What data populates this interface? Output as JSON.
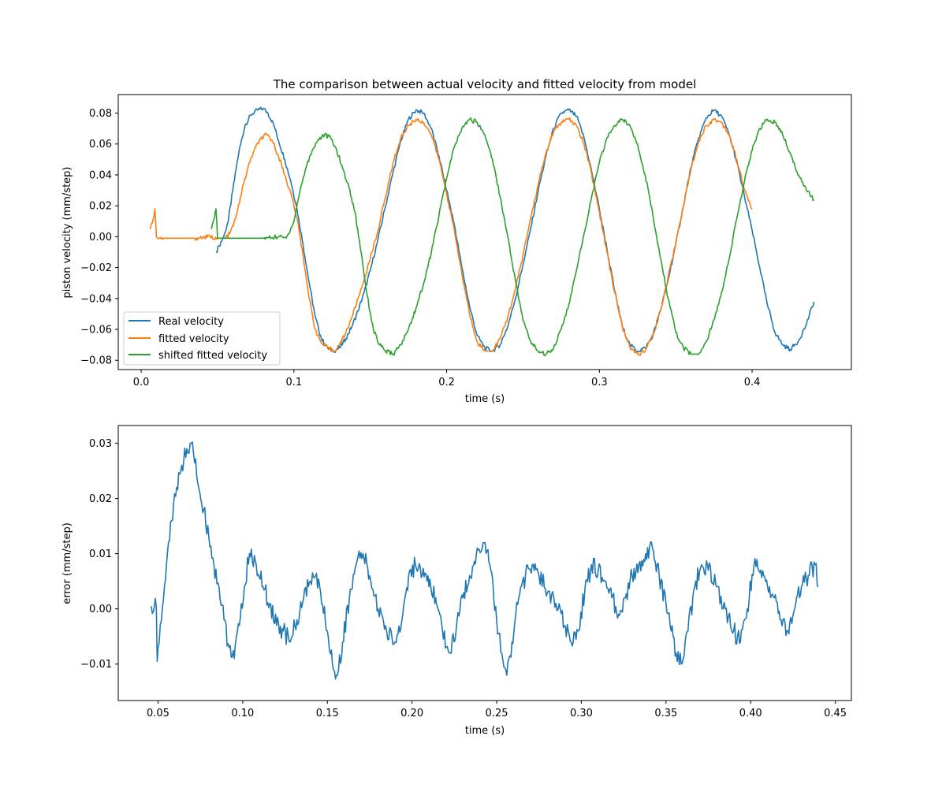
{
  "chart_data": [
    {
      "type": "line",
      "title": "The comparison between actual velocity and fitted velocity from model",
      "xlabel": "time (s)",
      "ylabel": "piston velocity (mm/step)",
      "xlim": [
        -0.015,
        0.465
      ],
      "ylim": [
        -0.086,
        0.092
      ],
      "xticks": [
        0.0,
        0.1,
        0.2,
        0.3,
        0.4
      ],
      "xtick_labels": [
        "0.0",
        "0.1",
        "0.2",
        "0.3",
        "0.4"
      ],
      "yticks": [
        -0.08,
        -0.06,
        -0.04,
        -0.02,
        0.0,
        0.02,
        0.04,
        0.06,
        0.08
      ],
      "ytick_labels": [
        "−0.08",
        "−0.06",
        "−0.04",
        "−0.02",
        "0.00",
        "0.02",
        "0.04",
        "0.06",
        "0.08"
      ],
      "grid": false,
      "legend_position": "lower-left",
      "series": [
        {
          "name": "Real velocity",
          "color": "#1f77b4",
          "x": [
            0.049,
            0.051,
            0.054,
            0.057,
            0.06,
            0.064,
            0.068,
            0.072,
            0.076,
            0.08,
            0.083,
            0.087,
            0.09,
            0.094,
            0.098,
            0.102,
            0.106,
            0.11,
            0.114,
            0.118,
            0.122,
            0.126,
            0.13,
            0.134,
            0.138,
            0.142,
            0.146,
            0.15,
            0.155,
            0.16,
            0.165,
            0.17,
            0.175,
            0.18,
            0.185,
            0.19,
            0.195,
            0.2,
            0.205,
            0.21,
            0.215,
            0.22,
            0.225,
            0.23,
            0.235,
            0.24,
            0.245,
            0.25,
            0.255,
            0.26,
            0.265,
            0.27,
            0.275,
            0.28,
            0.285,
            0.29,
            0.295,
            0.3,
            0.305,
            0.31,
            0.315,
            0.32,
            0.325,
            0.33,
            0.335,
            0.34,
            0.345,
            0.35,
            0.355,
            0.36,
            0.365,
            0.37,
            0.375,
            0.38,
            0.385,
            0.39,
            0.395,
            0.4,
            0.405,
            0.41,
            0.415,
            0.42,
            0.425,
            0.43,
            0.435,
            0.4405
          ],
          "y": [
            -0.01,
            -0.006,
            0.0,
            0.01,
            0.03,
            0.055,
            0.072,
            0.079,
            0.082,
            0.083,
            0.08,
            0.072,
            0.062,
            0.05,
            0.036,
            0.018,
            -0.005,
            -0.03,
            -0.052,
            -0.066,
            -0.072,
            -0.074,
            -0.072,
            -0.066,
            -0.058,
            -0.048,
            -0.036,
            -0.022,
            -0.002,
            0.02,
            0.042,
            0.062,
            0.076,
            0.082,
            0.08,
            0.07,
            0.052,
            0.03,
            0.008,
            -0.02,
            -0.045,
            -0.064,
            -0.072,
            -0.074,
            -0.07,
            -0.058,
            -0.04,
            -0.018,
            0.005,
            0.03,
            0.052,
            0.07,
            0.08,
            0.082,
            0.078,
            0.064,
            0.042,
            0.018,
            -0.008,
            -0.035,
            -0.058,
            -0.07,
            -0.074,
            -0.072,
            -0.064,
            -0.048,
            -0.028,
            -0.005,
            0.02,
            0.045,
            0.064,
            0.077,
            0.082,
            0.078,
            0.066,
            0.048,
            0.026,
            0.004,
            -0.02,
            -0.044,
            -0.062,
            -0.07,
            -0.073,
            -0.068,
            -0.058,
            -0.042
          ]
        },
        {
          "name": "fitted velocity",
          "color": "#ff7f0e",
          "x": [
            0.006,
            0.008,
            0.009,
            0.01,
            0.015,
            0.025,
            0.035,
            0.045,
            0.05,
            0.055,
            0.058,
            0.062,
            0.066,
            0.07,
            0.074,
            0.078,
            0.082,
            0.086,
            0.09,
            0.094,
            0.098,
            0.102,
            0.106,
            0.11,
            0.114,
            0.118,
            0.122,
            0.126,
            0.13,
            0.134,
            0.138,
            0.142,
            0.146,
            0.15,
            0.155,
            0.16,
            0.165,
            0.17,
            0.175,
            0.18,
            0.185,
            0.19,
            0.195,
            0.2,
            0.205,
            0.21,
            0.215,
            0.22,
            0.225,
            0.23,
            0.235,
            0.24,
            0.245,
            0.25,
            0.255,
            0.26,
            0.265,
            0.27,
            0.275,
            0.28,
            0.285,
            0.29,
            0.295,
            0.3,
            0.305,
            0.31,
            0.315,
            0.32,
            0.325,
            0.33,
            0.335,
            0.34,
            0.345,
            0.35,
            0.355,
            0.36,
            0.365,
            0.37,
            0.375,
            0.38,
            0.385,
            0.39,
            0.395,
            0.4
          ],
          "y": [
            0.005,
            0.012,
            0.018,
            0.0,
            -0.001,
            -0.001,
            -0.001,
            0.0,
            -0.001,
            -0.001,
            0.002,
            0.012,
            0.03,
            0.045,
            0.056,
            0.063,
            0.066,
            0.062,
            0.052,
            0.04,
            0.028,
            0.012,
            -0.012,
            -0.04,
            -0.06,
            -0.069,
            -0.072,
            -0.074,
            -0.07,
            -0.062,
            -0.052,
            -0.04,
            -0.028,
            -0.014,
            0.004,
            0.026,
            0.048,
            0.064,
            0.072,
            0.076,
            0.074,
            0.066,
            0.05,
            0.028,
            0.004,
            -0.024,
            -0.05,
            -0.068,
            -0.074,
            -0.074,
            -0.066,
            -0.052,
            -0.034,
            -0.012,
            0.012,
            0.034,
            0.054,
            0.068,
            0.074,
            0.076,
            0.072,
            0.06,
            0.04,
            0.016,
            -0.01,
            -0.036,
            -0.058,
            -0.072,
            -0.076,
            -0.074,
            -0.064,
            -0.048,
            -0.026,
            -0.004,
            0.02,
            0.044,
            0.062,
            0.072,
            0.076,
            0.074,
            0.066,
            0.05,
            0.03,
            0.018
          ]
        },
        {
          "name": "shifted fitted velocity",
          "color": "#2ca02c",
          "x": [
            0.046,
            0.048,
            0.049,
            0.05,
            0.06,
            0.07,
            0.08,
            0.09,
            0.095,
            0.1,
            0.104,
            0.108,
            0.112,
            0.116,
            0.12,
            0.124,
            0.128,
            0.132,
            0.136,
            0.14,
            0.144,
            0.148,
            0.152,
            0.156,
            0.16,
            0.165,
            0.17,
            0.175,
            0.18,
            0.185,
            0.19,
            0.195,
            0.2,
            0.205,
            0.21,
            0.215,
            0.22,
            0.225,
            0.23,
            0.235,
            0.24,
            0.245,
            0.25,
            0.255,
            0.26,
            0.265,
            0.27,
            0.275,
            0.28,
            0.285,
            0.29,
            0.295,
            0.3,
            0.305,
            0.31,
            0.315,
            0.32,
            0.325,
            0.33,
            0.335,
            0.34,
            0.345,
            0.35,
            0.355,
            0.36,
            0.365,
            0.37,
            0.375,
            0.38,
            0.385,
            0.39,
            0.395,
            0.4,
            0.405,
            0.41,
            0.415,
            0.42,
            0.425,
            0.43,
            0.435,
            0.4405
          ],
          "y": [
            0.005,
            0.012,
            0.018,
            -0.001,
            -0.001,
            -0.001,
            -0.001,
            0.0,
            -0.001,
            0.01,
            0.03,
            0.045,
            0.056,
            0.063,
            0.066,
            0.064,
            0.056,
            0.044,
            0.032,
            0.016,
            -0.01,
            -0.038,
            -0.06,
            -0.07,
            -0.074,
            -0.076,
            -0.07,
            -0.06,
            -0.046,
            -0.03,
            -0.01,
            0.014,
            0.038,
            0.058,
            0.07,
            0.076,
            0.074,
            0.066,
            0.05,
            0.026,
            0.0,
            -0.028,
            -0.054,
            -0.068,
            -0.074,
            -0.076,
            -0.072,
            -0.06,
            -0.044,
            -0.022,
            0.002,
            0.026,
            0.048,
            0.064,
            0.072,
            0.076,
            0.072,
            0.06,
            0.04,
            0.014,
            -0.014,
            -0.04,
            -0.062,
            -0.072,
            -0.076,
            -0.076,
            -0.068,
            -0.054,
            -0.036,
            -0.014,
            0.012,
            0.036,
            0.056,
            0.07,
            0.076,
            0.074,
            0.066,
            0.054,
            0.04,
            0.032,
            0.024
          ]
        }
      ]
    },
    {
      "type": "line",
      "title": "",
      "xlabel": "time (s)",
      "ylabel": "error (mm/step)",
      "xlim": [
        0.0265,
        0.4595
      ],
      "ylim": [
        -0.0166,
        0.0332
      ],
      "xticks": [
        0.05,
        0.1,
        0.15,
        0.2,
        0.25,
        0.3,
        0.35,
        0.4,
        0.45
      ],
      "xtick_labels": [
        "0.05",
        "0.10",
        "0.15",
        "0.20",
        "0.25",
        "0.30",
        "0.35",
        "0.40",
        "0.45"
      ],
      "yticks": [
        -0.01,
        0.0,
        0.01,
        0.02,
        0.03
      ],
      "ytick_labels": [
        "−0.01",
        "0.00",
        "0.01",
        "0.02",
        "0.03"
      ],
      "grid": false,
      "series": [
        {
          "color": "#1f77b4",
          "x": [
            0.046,
            0.049,
            0.0495,
            0.05,
            0.052,
            0.055,
            0.058,
            0.061,
            0.064,
            0.067,
            0.069,
            0.071,
            0.074,
            0.077,
            0.08,
            0.083,
            0.086,
            0.089,
            0.092,
            0.095,
            0.098,
            0.101,
            0.104,
            0.108,
            0.112,
            0.116,
            0.12,
            0.124,
            0.128,
            0.132,
            0.136,
            0.14,
            0.143,
            0.146,
            0.15,
            0.153,
            0.156,
            0.159,
            0.163,
            0.167,
            0.171,
            0.175,
            0.18,
            0.185,
            0.19,
            0.194,
            0.198,
            0.202,
            0.206,
            0.21,
            0.214,
            0.218,
            0.222,
            0.226,
            0.23,
            0.234,
            0.238,
            0.242,
            0.246,
            0.25,
            0.253,
            0.256,
            0.259,
            0.263,
            0.267,
            0.271,
            0.275,
            0.28,
            0.285,
            0.29,
            0.294,
            0.298,
            0.302,
            0.306,
            0.31,
            0.314,
            0.318,
            0.322,
            0.326,
            0.33,
            0.334,
            0.338,
            0.342,
            0.346,
            0.35,
            0.353,
            0.356,
            0.359,
            0.363,
            0.367,
            0.371,
            0.375,
            0.38,
            0.385,
            0.39,
            0.394,
            0.398,
            0.402,
            0.406,
            0.41,
            0.414,
            0.418,
            0.422,
            0.426,
            0.43,
            0.434,
            0.438,
            0.44
          ],
          "y": [
            0.0005,
            0.0003,
            -0.0095,
            -0.007,
            -0.002,
            0.008,
            0.016,
            0.022,
            0.026,
            0.029,
            0.03,
            0.028,
            0.022,
            0.018,
            0.013,
            0.008,
            0.004,
            -0.002,
            -0.007,
            -0.009,
            -0.003,
            0.004,
            0.01,
            0.008,
            0.004,
            0.001,
            -0.003,
            -0.004,
            -0.006,
            -0.002,
            0.002,
            0.005,
            0.006,
            0.003,
            -0.004,
            -0.01,
            -0.012,
            -0.006,
            0.002,
            0.008,
            0.01,
            0.006,
            0.0,
            -0.004,
            -0.006,
            -0.002,
            0.006,
            0.008,
            0.006,
            0.004,
            0.002,
            -0.004,
            -0.008,
            -0.004,
            0.002,
            0.006,
            0.01,
            0.012,
            0.008,
            -0.002,
            -0.008,
            -0.012,
            -0.006,
            0.002,
            0.006,
            0.008,
            0.006,
            0.003,
            0.001,
            -0.003,
            -0.006,
            -0.004,
            0.003,
            0.008,
            0.007,
            0.005,
            0.002,
            -0.001,
            0.002,
            0.006,
            0.008,
            0.01,
            0.011,
            0.006,
            0.001,
            -0.004,
            -0.008,
            -0.01,
            -0.004,
            0.004,
            0.008,
            0.007,
            0.004,
            0.0,
            -0.004,
            -0.006,
            0.0,
            0.008,
            0.007,
            0.004,
            0.002,
            -0.002,
            -0.004,
            0.0,
            0.004,
            0.006,
            0.008,
            0.004
          ]
        }
      ]
    }
  ]
}
